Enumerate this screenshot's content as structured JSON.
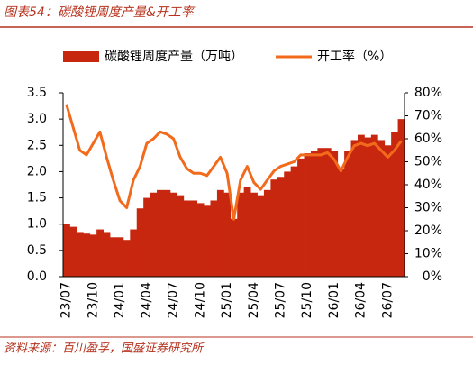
{
  "chart_data": {
    "type": "bar-line",
    "title": "图表54：碳酸锂周度产量&开工率",
    "source": "资料来源：百川盈孚，国盛证券研究所",
    "categories": [
      "23/07",
      null,
      null,
      null,
      "23/10",
      null,
      null,
      null,
      "24/01",
      null,
      null,
      null,
      "24/04",
      null,
      null,
      null,
      "24/07",
      null,
      null,
      null,
      "24/10",
      null,
      null,
      null,
      "25/01",
      null,
      null,
      null,
      "25/04",
      null,
      null,
      null,
      "25/07",
      null,
      null,
      null,
      "25/10",
      null,
      null,
      null,
      "26/01",
      null,
      null,
      null,
      "26/04",
      null,
      null,
      null,
      "26/07",
      null,
      null
    ],
    "series": [
      {
        "name": "碳酸锂周度产量（万吨）",
        "color": "#c8270f",
        "type": "bar",
        "values": [
          1.0,
          0.95,
          0.85,
          0.82,
          0.8,
          0.9,
          0.85,
          0.75,
          0.75,
          0.7,
          0.9,
          1.3,
          1.5,
          1.6,
          1.65,
          1.65,
          1.6,
          1.55,
          1.45,
          1.45,
          1.4,
          1.35,
          1.45,
          1.65,
          1.6,
          1.1,
          1.6,
          1.7,
          1.6,
          1.55,
          1.65,
          1.85,
          1.9,
          2.0,
          2.1,
          2.25,
          2.35,
          2.4,
          2.45,
          2.45,
          2.4,
          2.05,
          2.4,
          2.6,
          2.7,
          2.65,
          2.7,
          2.6,
          2.5,
          2.75,
          3.0
        ]
      },
      {
        "name": "开工率（%）",
        "color": "#f26a1b",
        "type": "line",
        "axis": "y2",
        "values": [
          75,
          65,
          55,
          53,
          58,
          63,
          52,
          42,
          33,
          30,
          42,
          48,
          58,
          60,
          63,
          62,
          60,
          52,
          47,
          45,
          45,
          44,
          48,
          52,
          45,
          25,
          42,
          48,
          41,
          38,
          42,
          46,
          48,
          49,
          50,
          53,
          53,
          53,
          53,
          54,
          51,
          46,
          52,
          57,
          58,
          57,
          58,
          55,
          52,
          55,
          59
        ]
      }
    ],
    "ylim": [
      0,
      3.5
    ],
    "yticks": [
      {
        "value": 0,
        "label": "0.0"
      },
      {
        "value": 0.5,
        "label": "0.5"
      },
      {
        "value": 1,
        "label": "1.0"
      },
      {
        "value": 1.5,
        "label": "1.5"
      },
      {
        "value": 2,
        "label": "2.0"
      },
      {
        "value": 2.5,
        "label": "2.5"
      },
      {
        "value": 3,
        "label": "3.0"
      },
      {
        "value": 3.5,
        "label": "3.5"
      }
    ],
    "y2lim": [
      0,
      80
    ],
    "y2ticks": [
      {
        "value": 0,
        "label": "0%"
      },
      {
        "value": 10,
        "label": "10%"
      },
      {
        "value": 20,
        "label": "20%"
      },
      {
        "value": 30,
        "label": "30%"
      },
      {
        "value": 40,
        "label": "40%"
      },
      {
        "value": 50,
        "label": "50%"
      },
      {
        "value": 60,
        "label": "60%"
      },
      {
        "value": 70,
        "label": "70%"
      },
      {
        "value": 80,
        "label": "80%"
      }
    ],
    "legend": "top"
  }
}
